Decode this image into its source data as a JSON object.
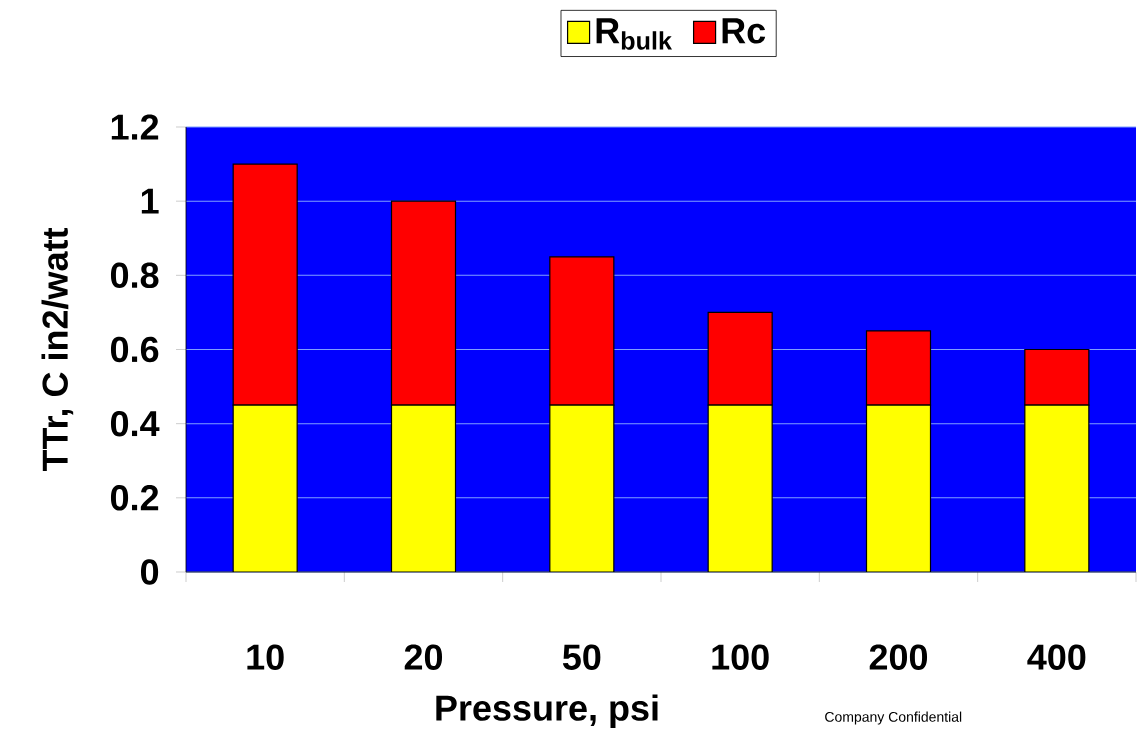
{
  "chart_data": {
    "type": "bar",
    "stacked": true,
    "xlabel": "Pressure, psi",
    "ylabel": "TTr, C in2/watt",
    "categories": [
      "10",
      "20",
      "50",
      "100",
      "200",
      "400"
    ],
    "series": [
      {
        "name": "R$_{bulk}$",
        "color": "#ffff00",
        "values": [
          0.45,
          0.45,
          0.45,
          0.45,
          0.45,
          0.45
        ]
      },
      {
        "name": "Rc",
        "color": "#ff0000",
        "values": [
          0.65,
          0.55,
          0.4,
          0.25,
          0.2,
          0.15
        ]
      }
    ],
    "ylim": [
      0,
      1.2
    ],
    "yticks": [
      0,
      0.2,
      0.4,
      0.6,
      0.8,
      1,
      1.2
    ],
    "grid": "y",
    "legend": "top",
    "annotations": [
      "Company Confidential"
    ]
  }
}
